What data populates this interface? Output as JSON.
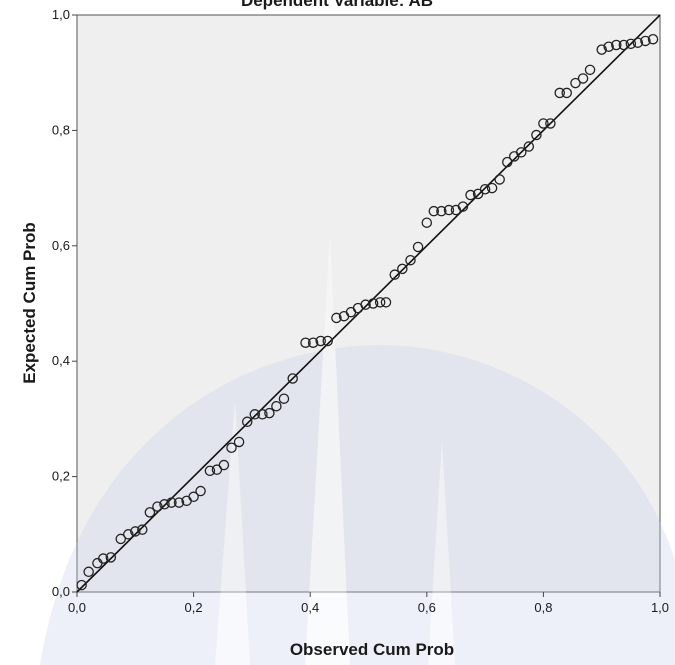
{
  "chart_data": {
    "type": "scatter",
    "title": "Dependent Variable: AB",
    "xlabel": "Observed Cum Prob",
    "ylabel": "Expected Cum Prob",
    "xlim": [
      0,
      1
    ],
    "ylim": [
      0,
      1
    ],
    "x_ticks": [
      "0,0",
      "0,2",
      "0,4",
      "0,6",
      "0,8",
      "1,0"
    ],
    "y_ticks": [
      "0,0",
      "0,2",
      "0,4",
      "0,6",
      "0,8",
      "1,0"
    ],
    "reference_line": [
      [
        0,
        0
      ],
      [
        1,
        1
      ]
    ],
    "grid": false,
    "colors": {
      "plot_background": "#efefef",
      "markers": "#222222",
      "line": "#111111"
    },
    "points": [
      [
        0.008,
        0.012
      ],
      [
        0.02,
        0.035
      ],
      [
        0.035,
        0.05
      ],
      [
        0.045,
        0.058
      ],
      [
        0.058,
        0.06
      ],
      [
        0.075,
        0.092
      ],
      [
        0.088,
        0.1
      ],
      [
        0.1,
        0.105
      ],
      [
        0.112,
        0.108
      ],
      [
        0.125,
        0.138
      ],
      [
        0.138,
        0.148
      ],
      [
        0.15,
        0.152
      ],
      [
        0.162,
        0.155
      ],
      [
        0.175,
        0.155
      ],
      [
        0.188,
        0.158
      ],
      [
        0.2,
        0.165
      ],
      [
        0.212,
        0.175
      ],
      [
        0.228,
        0.21
      ],
      [
        0.24,
        0.212
      ],
      [
        0.252,
        0.22
      ],
      [
        0.265,
        0.25
      ],
      [
        0.278,
        0.26
      ],
      [
        0.292,
        0.295
      ],
      [
        0.305,
        0.308
      ],
      [
        0.318,
        0.308
      ],
      [
        0.33,
        0.31
      ],
      [
        0.342,
        0.322
      ],
      [
        0.355,
        0.335
      ],
      [
        0.37,
        0.37
      ],
      [
        0.392,
        0.432
      ],
      [
        0.405,
        0.432
      ],
      [
        0.418,
        0.435
      ],
      [
        0.43,
        0.435
      ],
      [
        0.445,
        0.475
      ],
      [
        0.458,
        0.478
      ],
      [
        0.47,
        0.485
      ],
      [
        0.482,
        0.492
      ],
      [
        0.495,
        0.498
      ],
      [
        0.508,
        0.5
      ],
      [
        0.52,
        0.502
      ],
      [
        0.53,
        0.502
      ],
      [
        0.545,
        0.55
      ],
      [
        0.558,
        0.56
      ],
      [
        0.572,
        0.575
      ],
      [
        0.585,
        0.598
      ],
      [
        0.6,
        0.64
      ],
      [
        0.612,
        0.66
      ],
      [
        0.625,
        0.66
      ],
      [
        0.638,
        0.662
      ],
      [
        0.65,
        0.662
      ],
      [
        0.662,
        0.668
      ],
      [
        0.675,
        0.688
      ],
      [
        0.688,
        0.69
      ],
      [
        0.7,
        0.698
      ],
      [
        0.712,
        0.7
      ],
      [
        0.725,
        0.715
      ],
      [
        0.738,
        0.745
      ],
      [
        0.75,
        0.755
      ],
      [
        0.762,
        0.762
      ],
      [
        0.775,
        0.772
      ],
      [
        0.788,
        0.792
      ],
      [
        0.8,
        0.812
      ],
      [
        0.812,
        0.812
      ],
      [
        0.828,
        0.865
      ],
      [
        0.84,
        0.865
      ],
      [
        0.855,
        0.882
      ],
      [
        0.868,
        0.89
      ],
      [
        0.88,
        0.905
      ],
      [
        0.9,
        0.94
      ],
      [
        0.912,
        0.945
      ],
      [
        0.925,
        0.948
      ],
      [
        0.938,
        0.948
      ],
      [
        0.95,
        0.95
      ],
      [
        0.962,
        0.952
      ],
      [
        0.975,
        0.955
      ],
      [
        0.988,
        0.958
      ]
    ]
  }
}
